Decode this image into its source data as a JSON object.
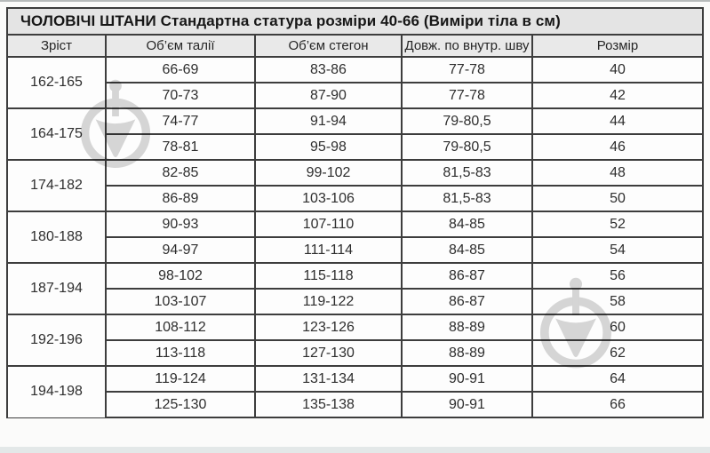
{
  "title": "ЧОЛОВІЧІ ШТАНИ  Стандартна статура розміри 40-66 (Виміри тіла в см)",
  "table": {
    "columns": [
      "Зріст",
      "Об’єм талії",
      "Об’єм стегон",
      "Довж. по внутр. шву",
      "Розмір"
    ],
    "groups": [
      {
        "height": "162-165",
        "rows": [
          [
            "66-69",
            "83-86",
            "77-78",
            "40"
          ],
          [
            "70-73",
            "87-90",
            "77-78",
            "42"
          ]
        ]
      },
      {
        "height": "164-175",
        "rows": [
          [
            "74-77",
            "91-94",
            "79-80,5",
            "44"
          ],
          [
            "78-81",
            "95-98",
            "79-80,5",
            "46"
          ]
        ]
      },
      {
        "height": "174-182",
        "rows": [
          [
            "82-85",
            "99-102",
            "81,5-83",
            "48"
          ],
          [
            "86-89",
            "103-106",
            "81,5-83",
            "50"
          ]
        ]
      },
      {
        "height": "180-188",
        "rows": [
          [
            "90-93",
            "107-110",
            "84-85",
            "52"
          ],
          [
            "94-97",
            "111-114",
            "84-85",
            "54"
          ]
        ]
      },
      {
        "height": "187-194",
        "rows": [
          [
            "98-102",
            "115-118",
            "86-87",
            "56"
          ],
          [
            "103-107",
            "119-122",
            "86-87",
            "58"
          ]
        ]
      },
      {
        "height": "192-196",
        "rows": [
          [
            "108-112",
            "123-126",
            "88-89",
            "60"
          ],
          [
            "113-118",
            "127-130",
            "88-89",
            "62"
          ]
        ]
      },
      {
        "height": "194-198",
        "rows": [
          [
            "119-124",
            "131-134",
            "90-91",
            "64"
          ],
          [
            "125-130",
            "135-138",
            "90-91",
            "66"
          ]
        ]
      }
    ]
  },
  "icons": {
    "watermark": "plumb-bob-in-ring-watermark"
  },
  "colors": {
    "title_bg": "#e4e4e4",
    "header_bg": "#e9e9e9",
    "border": "#3d3d3d",
    "watermark_gray": "#9a9a9a"
  }
}
